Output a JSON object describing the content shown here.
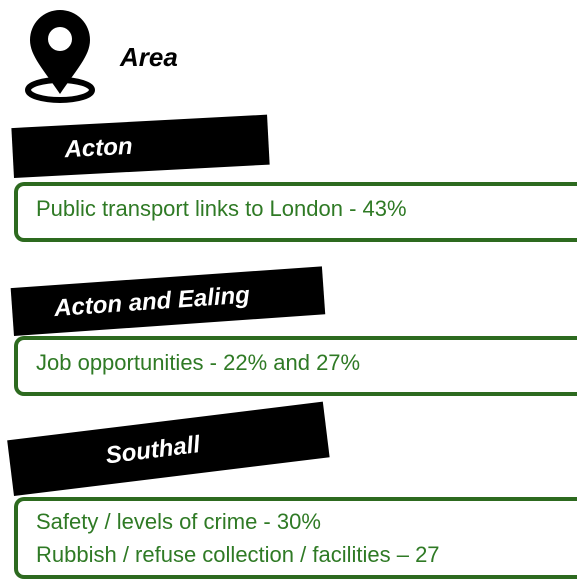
{
  "header": {
    "title": "Area"
  },
  "sections": [
    {
      "name": "Acton",
      "lines": [
        "Public transport links to London - 43%"
      ]
    },
    {
      "name": "Acton and Ealing",
      "lines": [
        "Job opportunities - 22% and 27%"
      ]
    },
    {
      "name": "Southall",
      "lines": [
        "Safety / levels of crime - 30%",
        "Rubbish / refuse collection / facilities – 27"
      ]
    }
  ]
}
